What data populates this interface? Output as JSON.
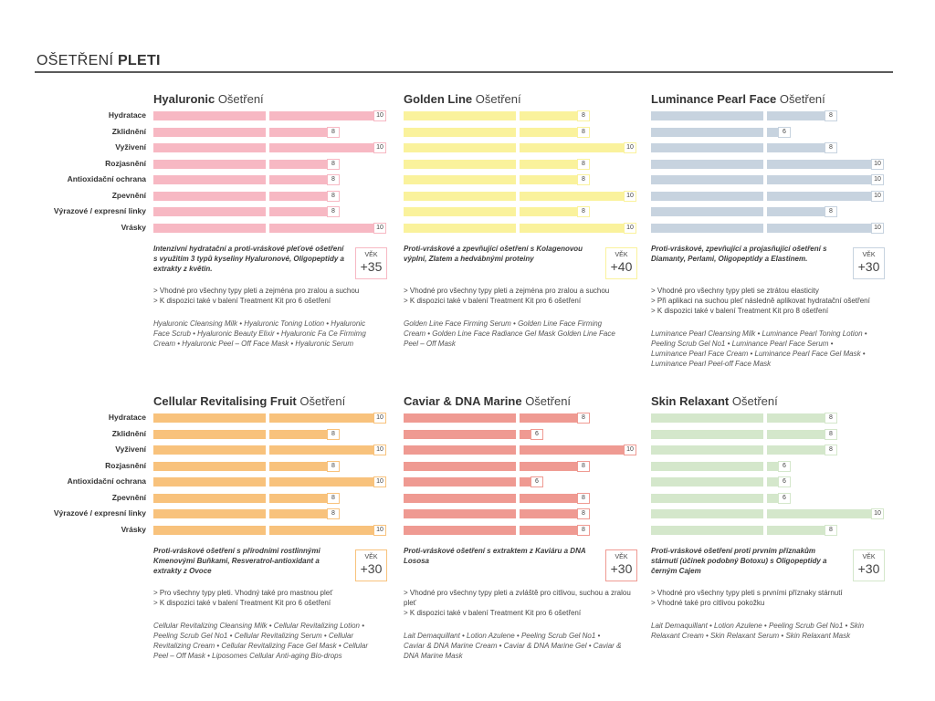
{
  "header": {
    "title_light": "OŠETŘENÍ",
    "title_bold": "PLETI"
  },
  "row_labels": [
    "Hydratace",
    "Zklidnění",
    "Vyživení",
    "Rozjasnění",
    "Antioxidační ochrana",
    "Zpevnění",
    "Výrazové / expresní linky",
    "Vrásky"
  ],
  "colors": {
    "hyaluronic": "#f7b8c3",
    "golden_line": "#faf29c",
    "luminance": "#c7d3df",
    "cellular": "#f8c27c",
    "caviar": "#ef9a92",
    "skin_relaxant": "#d4e7cb"
  },
  "cards": [
    {
      "id": "hyaluronic",
      "name": "Hyaluronic",
      "suffix": "Ošetření",
      "scores": [
        10,
        8,
        10,
        8,
        8,
        8,
        8,
        10
      ],
      "description": "Intenzivní hydratační a proti-vráskové pleťové ošetření s využitím 3 typů kyseliny Hyaluronové, Oligopeptidy a extrakty z květin.",
      "age_label": "VĚK",
      "age_value": "+35",
      "notes": [
        "> Vhodné pro všechny typy pleti a zejména pro zralou a suchou",
        "> K dispozici také v balení Treatment Kit pro 6 ošetření"
      ],
      "products": "Hyaluronic Cleansing Milk • Hyaluronic Toning Lotion • Hyaluronic Face Scrub • Hyaluronic Beauty Elixir • Hyaluronic Fa Ce Firmimg Cream • Hyaluronic Peel – Off Face Mask • Hyaluronic Serum"
    },
    {
      "id": "golden_line",
      "name": "Golden Line",
      "suffix": "Ošetření",
      "scores": [
        8,
        8,
        10,
        8,
        8,
        10,
        8,
        10
      ],
      "description": "Proti-vráskové a zpevňující ošetření s Kolagenovou výplní, Zlatem a hedvábnými proteiny",
      "age_label": "VĚK",
      "age_value": "+40",
      "notes": [
        "> Vhodné pro všechny typy pleti a zejména pro zralou a suchou",
        "> K dispozici také v balení Treatment Kit pro 6 ošetření"
      ],
      "products": "Golden Line Face Firming Serum • Golden Line Face Firming Cream • Golden Line Face Radiance Gel Mask Golden Line Face Peel – Off Mask"
    },
    {
      "id": "luminance",
      "name": "Luminance Pearl Face",
      "suffix": "Ošetření",
      "scores": [
        8,
        6,
        8,
        10,
        10,
        10,
        8,
        10
      ],
      "description": "Proti-vráskové, zpevňující a projasňující ošetření s Diamanty, Perlami, Oligopeptidy a Elastinem.",
      "age_label": "VĚK",
      "age_value": "+30",
      "notes": [
        "> Vhodné pro všechny typy pleti se ztrátou elasticity",
        "> Při aplikaci na suchou pleť následně aplikovat hydratační ošetření",
        "> K dispozici také v balení Treatment Kit pro 8 ošetření"
      ],
      "products": "Luminance Pearl Cleansing Milk • Luminance Pearl Toning Lotion • Peeling Scrub Gel No1 • Luminance Pearl Face Serum • Luminance Pearl Face Cream • Luminance Pearl Face Gel Mask • Luminance Pearl Peel-off Face Mask"
    },
    {
      "id": "cellular",
      "name": "Cellular Revitalising Fruit",
      "suffix": "Ošetření",
      "scores": [
        10,
        8,
        10,
        8,
        10,
        8,
        8,
        10
      ],
      "description": "Proti-vráskové ošetření s přírodními rostlinnými Kmenovými Buňkami, Resveratrol-antioxidant a extrakty z Ovoce",
      "age_label": "VĚK",
      "age_value": "+30",
      "notes": [
        "> Pro všechny typy pleti. Vhodný také pro mastnou pleť",
        "> K dispozici také v balení Treatment Kit pro 6 ošetření"
      ],
      "products": "Cellular Revitalizing Cleansing Milk • Cellular Revitalizing Lotion • Peeling Scrub Gel No1 • Cellular Revitalizing Serum • Cellular Revitalizing Cream • Cellular Revitalizing Face Gel Mask • Cellular Peel – Off Mask • Liposomes Cellular Anti-aging Bio-drops"
    },
    {
      "id": "caviar",
      "name": "Caviar & DNA Marine",
      "suffix": "Ošetření",
      "scores": [
        8,
        6,
        10,
        8,
        6,
        8,
        8,
        8
      ],
      "description": "Proti-vráskové ošetření s extraktem z Kaviáru a DNA Lososa",
      "age_label": "VĚK",
      "age_value": "+30",
      "notes": [
        "> Vhodné pro všechny typy pleti a zvláště pro citlivou, suchou a zralou pleť",
        "> K dispozici také v balení Treatment Kit pro 6 ošetření"
      ],
      "products": "Lait Demaquillant • Lotion Azulene • Peeling Scrub Gel No1 • Caviar & DNA Marine Cream • Caviar & DNA Marine Gel • Caviar & DNA Marine Mask"
    },
    {
      "id": "skin_relaxant",
      "name": "Skin Relaxant",
      "suffix": "Ošetření",
      "scores": [
        8,
        8,
        8,
        6,
        6,
        6,
        10,
        8
      ],
      "description": "Proti-vráskové ošetření proti prvním příznakům stárnutí (účinek podobný Botoxu) s Oligopeptidy a černým Cajem",
      "age_label": "VĚK",
      "age_value": "+30",
      "notes": [
        "> Vhodné pro všechny typy pleti s prvními příznaky stárnutí",
        "> Vhodné také pro citlivou pokožku"
      ],
      "products": "Lait Demaquillant • Lotion Azulene • Peeling Scrub Gel No1 • Skin Relaxant Cream • Skin Relaxant Serum • Skin Relaxant Mask"
    }
  ]
}
